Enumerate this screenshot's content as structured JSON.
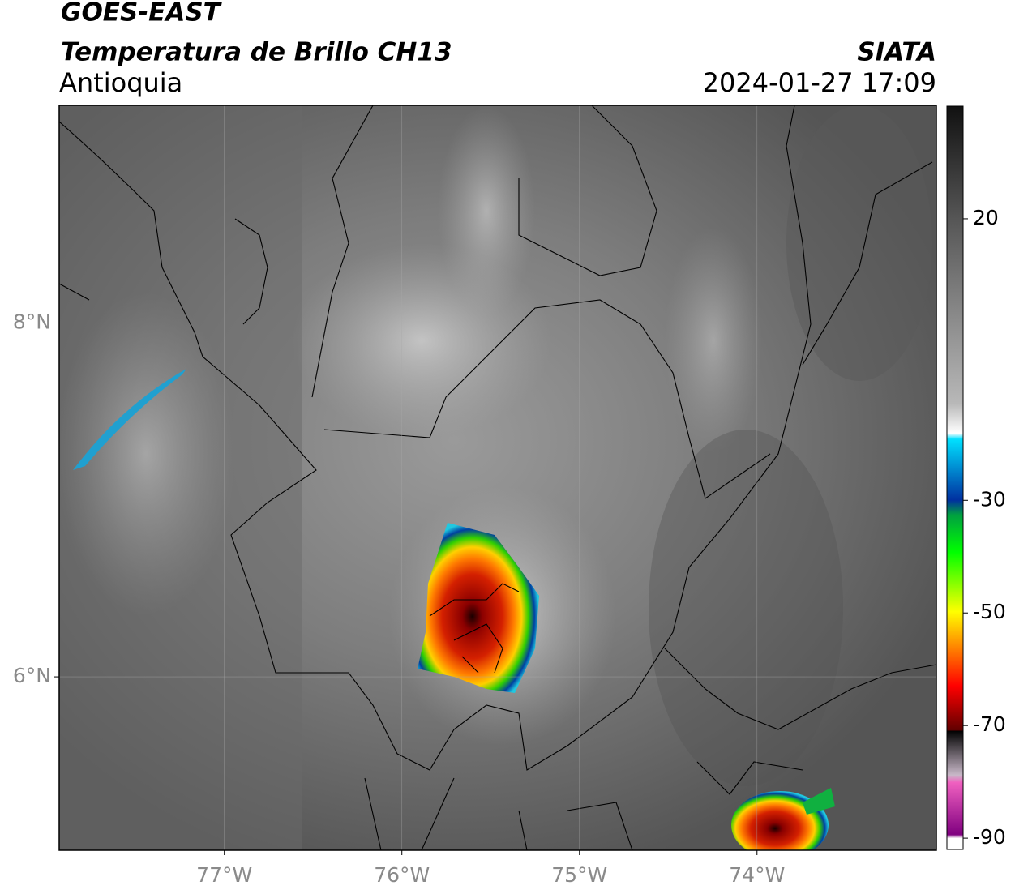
{
  "map": {
    "title": "GOES-EAST",
    "subtitle": "Temperatura de Brillo CH13",
    "region": "Antioquia",
    "source": "SIATA",
    "datetime": "2024-01-27 17:09",
    "xlim": [
      -77.93,
      -72.99
    ],
    "ylim": [
      5.02,
      9.23
    ],
    "xticks": [
      {
        "value": -77,
        "label": "77°W"
      },
      {
        "value": -76,
        "label": "76°W"
      },
      {
        "value": -75,
        "label": "75°W"
      },
      {
        "value": -74,
        "label": "74°W"
      }
    ],
    "yticks": [
      {
        "value": 8,
        "label": "8°N"
      },
      {
        "value": 6,
        "label": "6°N"
      }
    ],
    "grid": true,
    "colorbar": {
      "lim": [
        -92,
        40
      ],
      "ticks": [
        20,
        -30,
        -50,
        -70,
        -90
      ]
    }
  }
}
